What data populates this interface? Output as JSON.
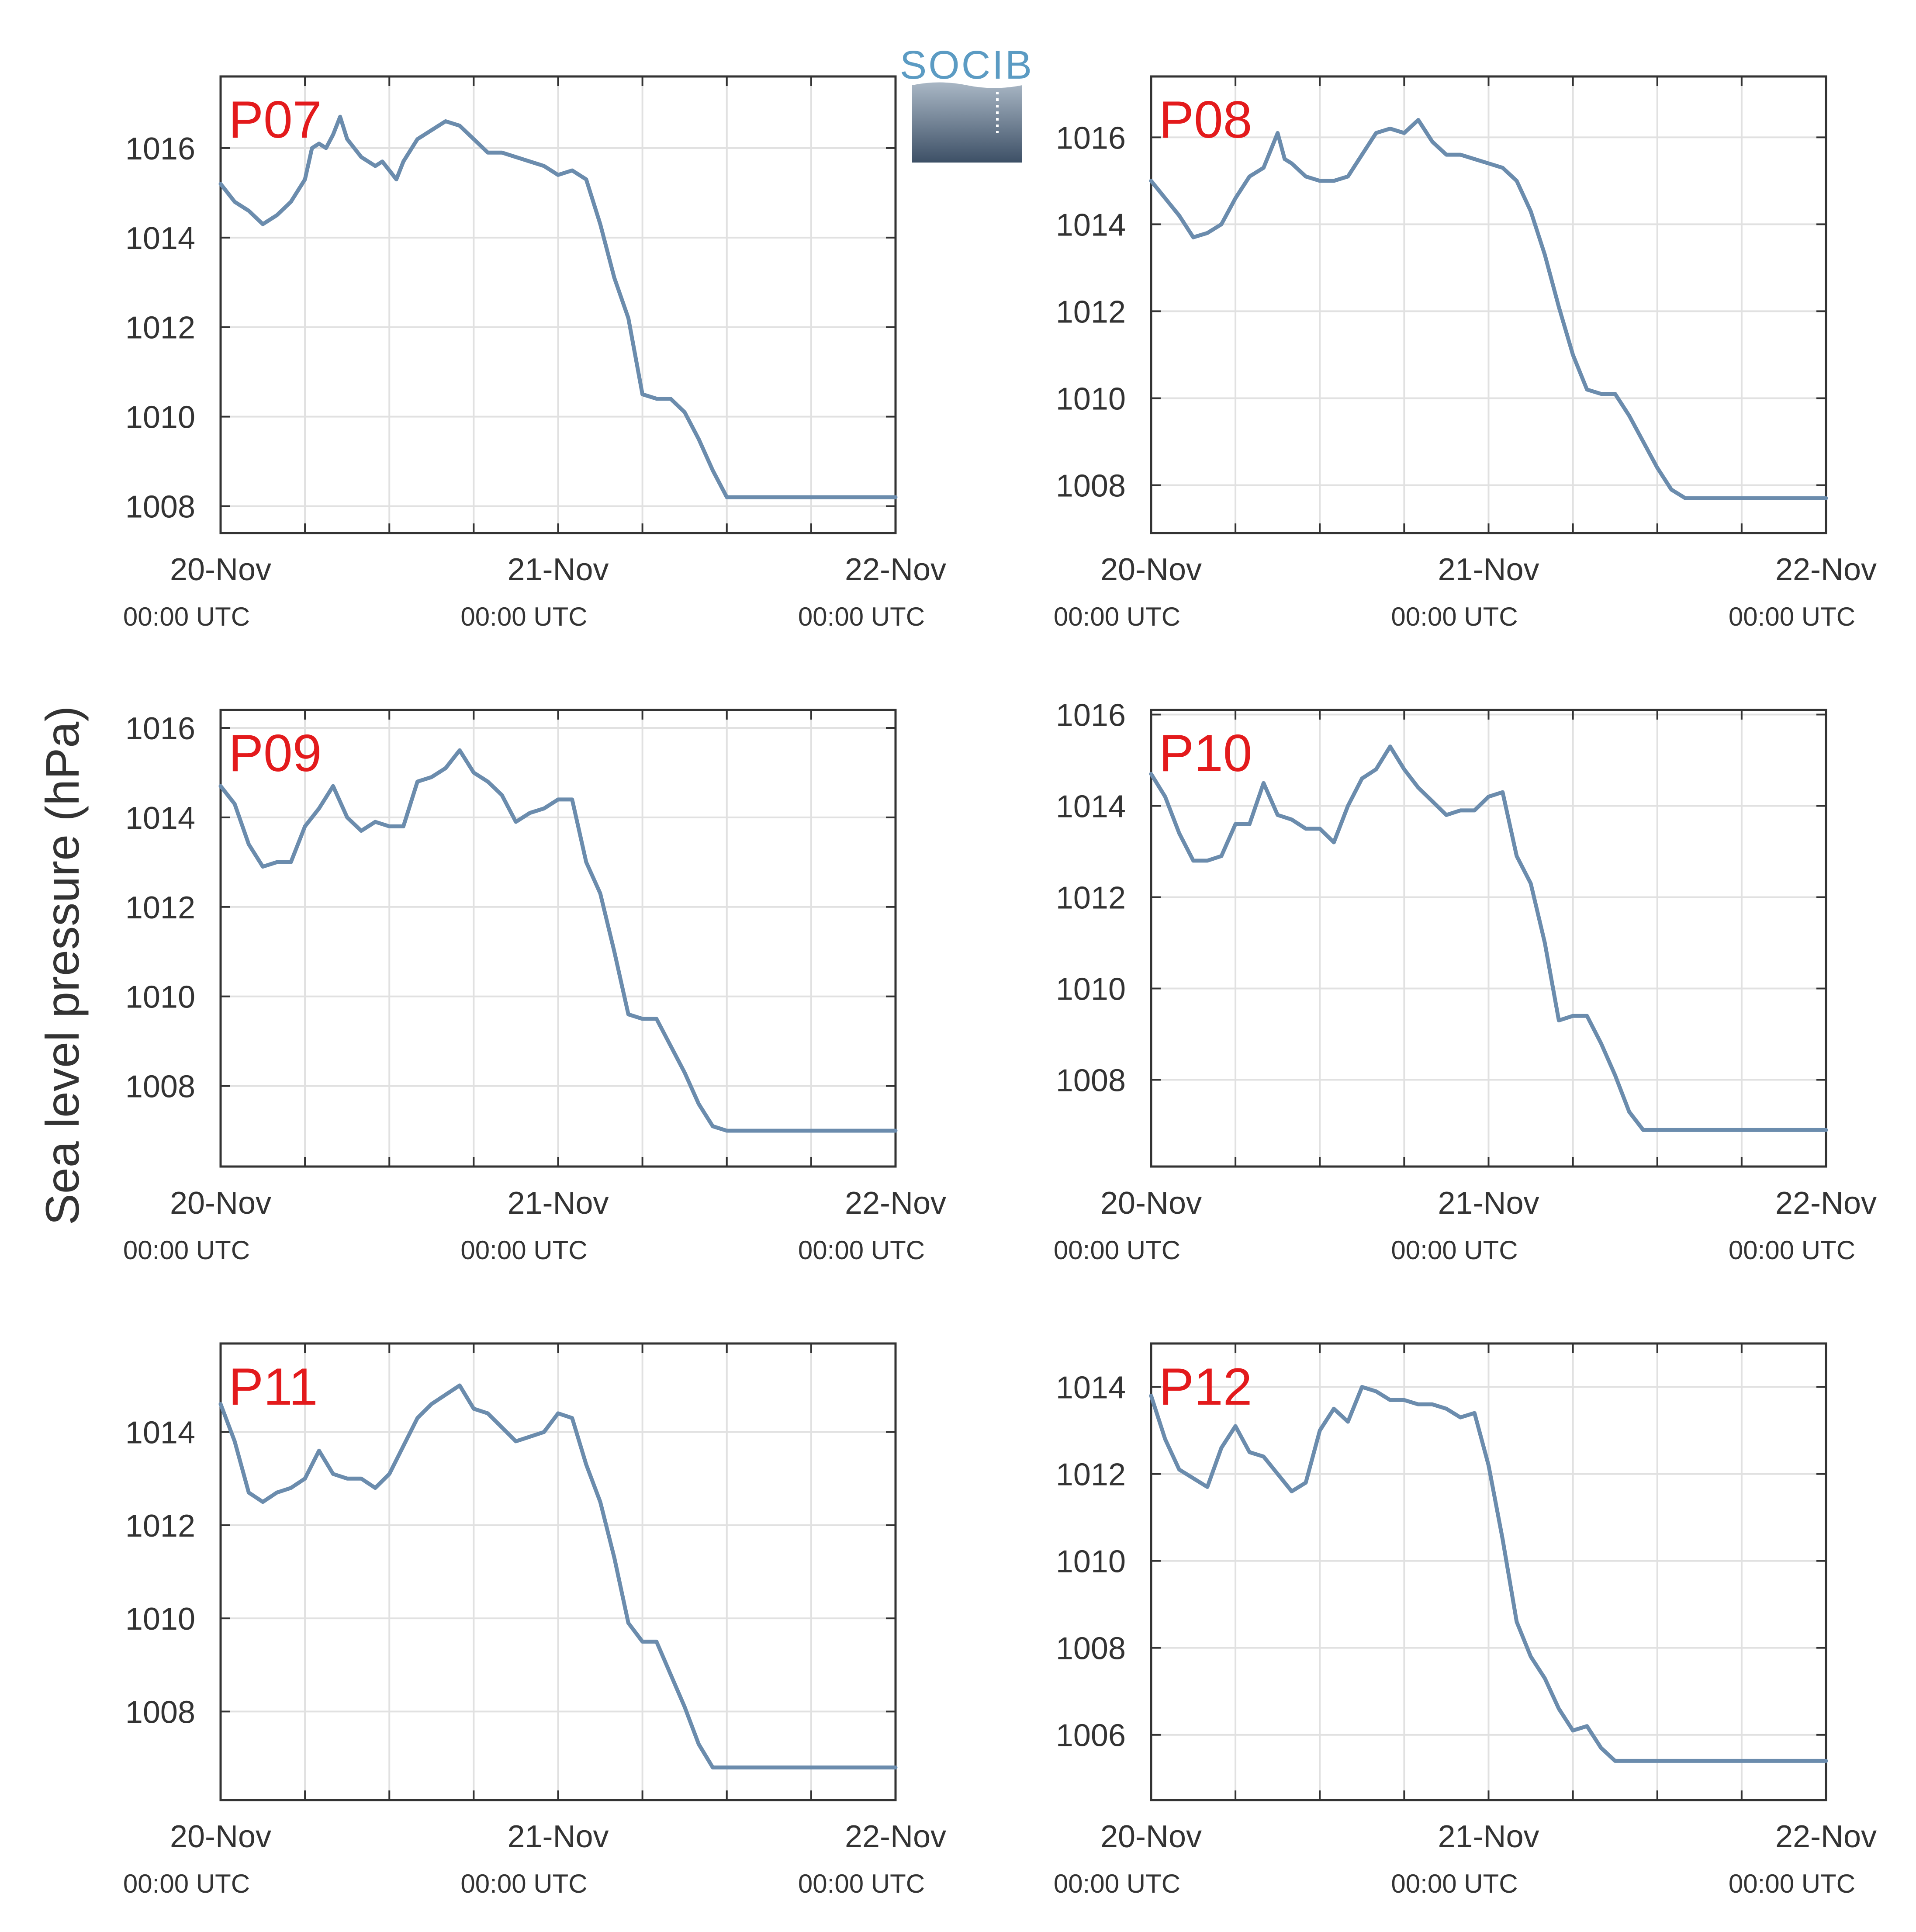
{
  "figure": {
    "ylabel": "Sea level pressure (hPa)",
    "logo_text": "SOCIB",
    "line_color": "#6b8cad",
    "panel_label_color": "#e31a1c"
  },
  "chart_data": [
    {
      "type": "line",
      "label": "P07",
      "x_ticks": [
        "20-Nov",
        "21-Nov",
        "22-Nov"
      ],
      "x_subticks": [
        "00:00 UTC",
        "00:00 UTC",
        "00:00 UTC"
      ],
      "x_range_hours": [
        0,
        48
      ],
      "ylim": [
        1007.4,
        1017.6
      ],
      "y_ticks": [
        1008,
        1010,
        1012,
        1014,
        1016
      ],
      "grid": true,
      "series": [
        {
          "x": [
            0,
            1,
            2,
            3,
            4,
            5,
            6,
            6.5,
            7,
            7.5,
            8,
            8.5,
            9,
            10,
            11,
            11.5,
            12,
            12.5,
            13,
            14,
            15,
            16,
            17,
            18,
            19,
            20,
            21,
            22,
            23,
            24,
            25,
            26,
            27,
            28,
            29,
            30,
            31,
            32,
            33,
            34,
            35,
            36,
            37,
            38,
            39,
            40,
            41,
            42,
            43,
            44,
            45,
            46,
            47,
            48
          ],
          "y": [
            1015.2,
            1014.8,
            1014.6,
            1014.3,
            1014.5,
            1014.8,
            1015.3,
            1016.0,
            1016.1,
            1016.0,
            1016.3,
            1016.7,
            1016.2,
            1015.8,
            1015.6,
            1015.7,
            1015.5,
            1015.3,
            1015.7,
            1016.2,
            1016.4,
            1016.6,
            1016.5,
            1016.2,
            1015.9,
            1015.9,
            1015.8,
            1015.7,
            1015.6,
            1015.4,
            1015.5,
            1015.3,
            1014.3,
            1013.1,
            1012.2,
            1010.5,
            1010.4,
            1010.4,
            1010.1,
            1009.5,
            1008.8,
            1008.2,
            1008.2,
            1008.2,
            1008.2,
            1008.2,
            1008.2,
            1008.2,
            1008.2,
            1008.2,
            1008.2,
            1008.2,
            1008.2,
            1008.2
          ]
        }
      ]
    },
    {
      "type": "line",
      "label": "P08",
      "x_ticks": [
        "20-Nov",
        "21-Nov",
        "22-Nov"
      ],
      "x_subticks": [
        "00:00 UTC",
        "00:00 UTC",
        "00:00 UTC"
      ],
      "x_range_hours": [
        0,
        48
      ],
      "ylim": [
        1006.9,
        1017.4
      ],
      "y_ticks": [
        1008,
        1010,
        1012,
        1014,
        1016
      ],
      "grid": true,
      "series": [
        {
          "x": [
            0,
            1,
            2,
            3,
            4,
            5,
            6,
            7,
            8,
            9,
            9.5,
            10,
            11,
            12,
            13,
            14,
            15,
            16,
            17,
            18,
            19,
            20,
            21,
            22,
            23,
            24,
            25,
            26,
            27,
            28,
            29,
            30,
            31,
            32,
            33,
            34,
            35,
            36,
            37,
            38,
            39,
            40,
            41,
            42,
            43,
            44,
            45,
            46,
            47,
            48
          ],
          "y": [
            1015.0,
            1014.6,
            1014.2,
            1013.7,
            1013.8,
            1014.0,
            1014.6,
            1015.1,
            1015.3,
            1016.1,
            1015.5,
            1015.4,
            1015.1,
            1015.0,
            1015.0,
            1015.1,
            1015.6,
            1016.1,
            1016.2,
            1016.1,
            1016.4,
            1015.9,
            1015.6,
            1015.6,
            1015.5,
            1015.4,
            1015.3,
            1015.0,
            1014.3,
            1013.3,
            1012.1,
            1011.0,
            1010.2,
            1010.1,
            1010.1,
            1009.6,
            1009.0,
            1008.4,
            1007.9,
            1007.7,
            1007.7,
            1007.7,
            1007.7,
            1007.7,
            1007.7,
            1007.7,
            1007.7,
            1007.7,
            1007.7,
            1007.7
          ]
        }
      ]
    },
    {
      "type": "line",
      "label": "P09",
      "x_ticks": [
        "20-Nov",
        "21-Nov",
        "22-Nov"
      ],
      "x_subticks": [
        "00:00 UTC",
        "00:00 UTC",
        "00:00 UTC"
      ],
      "x_range_hours": [
        0,
        48
      ],
      "ylim": [
        1006.2,
        1016.4
      ],
      "y_ticks": [
        1008,
        1010,
        1012,
        1014,
        1016
      ],
      "grid": true,
      "series": [
        {
          "x": [
            0,
            1,
            2,
            3,
            4,
            5,
            6,
            7,
            8,
            9,
            10,
            11,
            12,
            13,
            14,
            15,
            16,
            17,
            18,
            19,
            20,
            21,
            22,
            23,
            24,
            25,
            26,
            27,
            28,
            29,
            30,
            31,
            32,
            33,
            34,
            35,
            36,
            37,
            38,
            39,
            40,
            41,
            42,
            43,
            44,
            45,
            46,
            47,
            48
          ],
          "y": [
            1014.7,
            1014.3,
            1013.4,
            1012.9,
            1013.0,
            1013.0,
            1013.8,
            1014.2,
            1014.7,
            1014.0,
            1013.7,
            1013.9,
            1013.8,
            1013.8,
            1014.8,
            1014.9,
            1015.1,
            1015.5,
            1015.0,
            1014.8,
            1014.5,
            1013.9,
            1014.1,
            1014.2,
            1014.4,
            1014.4,
            1013.0,
            1012.3,
            1011.0,
            1009.6,
            1009.5,
            1009.5,
            1008.9,
            1008.3,
            1007.6,
            1007.1,
            1007.0,
            1007.0,
            1007.0,
            1007.0,
            1007.0,
            1007.0,
            1007.0,
            1007.0,
            1007.0,
            1007.0,
            1007.0,
            1007.0,
            1007.0
          ]
        }
      ]
    },
    {
      "type": "line",
      "label": "P10",
      "x_ticks": [
        "20-Nov",
        "21-Nov",
        "22-Nov"
      ],
      "x_subticks": [
        "00:00 UTC",
        "00:00 UTC",
        "00:00 UTC"
      ],
      "x_range_hours": [
        0,
        48
      ],
      "ylim": [
        1006.1,
        1016.1
      ],
      "y_ticks": [
        1008,
        1010,
        1012,
        1014,
        1016
      ],
      "grid": true,
      "series": [
        {
          "x": [
            0,
            1,
            2,
            3,
            4,
            5,
            6,
            7,
            8,
            9,
            10,
            11,
            12,
            13,
            14,
            15,
            16,
            17,
            18,
            19,
            20,
            21,
            22,
            23,
            24,
            25,
            26,
            27,
            28,
            29,
            30,
            31,
            32,
            33,
            34,
            35,
            36,
            37,
            38,
            39,
            40,
            41,
            42,
            43,
            44,
            45,
            46,
            47,
            48
          ],
          "y": [
            1014.7,
            1014.2,
            1013.4,
            1012.8,
            1012.8,
            1012.9,
            1013.6,
            1013.6,
            1014.5,
            1013.8,
            1013.7,
            1013.5,
            1013.5,
            1013.2,
            1014.0,
            1014.6,
            1014.8,
            1015.3,
            1014.8,
            1014.4,
            1014.1,
            1013.8,
            1013.9,
            1013.9,
            1014.2,
            1014.3,
            1012.9,
            1012.3,
            1011.0,
            1009.3,
            1009.4,
            1009.4,
            1008.8,
            1008.1,
            1007.3,
            1006.9,
            1006.9,
            1006.9,
            1006.9,
            1006.9,
            1006.9,
            1006.9,
            1006.9,
            1006.9,
            1006.9,
            1006.9,
            1006.9,
            1006.9,
            1006.9
          ]
        }
      ]
    },
    {
      "type": "line",
      "label": "P11",
      "x_ticks": [
        "20-Nov",
        "21-Nov",
        "22-Nov"
      ],
      "x_subticks": [
        "00:00 UTC",
        "00:00 UTC",
        "00:00 UTC"
      ],
      "x_range_hours": [
        0,
        48
      ],
      "ylim": [
        1006.1,
        1015.9
      ],
      "y_ticks": [
        1008,
        1010,
        1012,
        1014
      ],
      "grid": true,
      "series": [
        {
          "x": [
            0,
            1,
            2,
            3,
            4,
            5,
            6,
            7,
            8,
            9,
            10,
            11,
            12,
            13,
            14,
            15,
            16,
            17,
            18,
            19,
            20,
            21,
            22,
            23,
            24,
            25,
            26,
            27,
            28,
            29,
            30,
            31,
            32,
            33,
            34,
            35,
            36,
            37,
            38,
            39,
            40,
            41,
            42,
            43,
            44,
            45,
            46,
            47,
            48
          ],
          "y": [
            1014.6,
            1013.8,
            1012.7,
            1012.5,
            1012.7,
            1012.8,
            1013.0,
            1013.6,
            1013.1,
            1013.0,
            1013.0,
            1012.8,
            1013.1,
            1013.7,
            1014.3,
            1014.6,
            1014.8,
            1015.0,
            1014.5,
            1014.4,
            1014.1,
            1013.8,
            1013.9,
            1014.0,
            1014.4,
            1014.3,
            1013.3,
            1012.5,
            1011.3,
            1009.9,
            1009.5,
            1009.5,
            1008.8,
            1008.1,
            1007.3,
            1006.8,
            1006.8,
            1006.8,
            1006.8,
            1006.8,
            1006.8,
            1006.8,
            1006.8,
            1006.8,
            1006.8,
            1006.8,
            1006.8,
            1006.8,
            1006.8
          ]
        }
      ]
    },
    {
      "type": "line",
      "label": "P12",
      "x_ticks": [
        "20-Nov",
        "21-Nov",
        "22-Nov"
      ],
      "x_subticks": [
        "00:00 UTC",
        "00:00 UTC",
        "00:00 UTC"
      ],
      "x_range_hours": [
        0,
        48
      ],
      "ylim": [
        1004.5,
        1015.0
      ],
      "y_ticks": [
        1006,
        1008,
        1010,
        1012,
        1014
      ],
      "grid": true,
      "series": [
        {
          "x": [
            0,
            1,
            2,
            3,
            4,
            5,
            6,
            7,
            8,
            9,
            10,
            11,
            12,
            13,
            14,
            15,
            16,
            17,
            18,
            19,
            20,
            21,
            22,
            23,
            24,
            25,
            26,
            27,
            28,
            29,
            30,
            31,
            32,
            33,
            34,
            35,
            36,
            37,
            38,
            39,
            40,
            41,
            42,
            43,
            44,
            45,
            46,
            47,
            48
          ],
          "y": [
            1013.8,
            1012.8,
            1012.1,
            1011.9,
            1011.7,
            1012.6,
            1013.1,
            1012.5,
            1012.4,
            1012.0,
            1011.6,
            1011.8,
            1013.0,
            1013.5,
            1013.2,
            1014.0,
            1013.9,
            1013.7,
            1013.7,
            1013.6,
            1013.6,
            1013.5,
            1013.3,
            1013.4,
            1012.2,
            1010.5,
            1008.6,
            1007.8,
            1007.3,
            1006.6,
            1006.1,
            1006.2,
            1005.7,
            1005.4,
            1005.4,
            1005.4,
            1005.4,
            1005.4,
            1005.4,
            1005.4,
            1005.4,
            1005.4,
            1005.4,
            1005.4,
            1005.4,
            1005.4,
            1005.4,
            1005.4,
            1005.4
          ]
        }
      ]
    }
  ]
}
